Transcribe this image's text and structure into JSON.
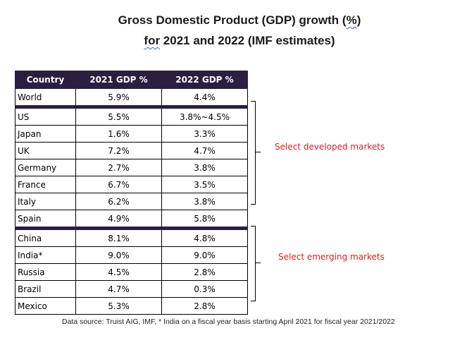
{
  "title": {
    "line1_a": "Gross Domestic Product (GDP) growth (",
    "line1_b": "%",
    "line1_c": ")",
    "line2_a": "for",
    "line2_b": " 2021 and 2022 (IMF estimates)"
  },
  "chart_data": {
    "type": "table",
    "columns": [
      "Country",
      "2021 GDP %",
      "2022 GDP %"
    ],
    "rows": [
      {
        "country": "World",
        "gdp_2021": "5.9%",
        "gdp_2022": "4.4%"
      },
      {
        "country": "US",
        "gdp_2021": "5.5%",
        "gdp_2022": "3.8%~4.5%"
      },
      {
        "country": "Japan",
        "gdp_2021": "1.6%",
        "gdp_2022": "3.3%"
      },
      {
        "country": "UK",
        "gdp_2021": "7.2%",
        "gdp_2022": "4.7%"
      },
      {
        "country": "Germany",
        "gdp_2021": "2.7%",
        "gdp_2022": "3.8%"
      },
      {
        "country": "France",
        "gdp_2021": "6.7%",
        "gdp_2022": "3.5%"
      },
      {
        "country": "Italy",
        "gdp_2021": "6.2%",
        "gdp_2022": "3.8%"
      },
      {
        "country": "Spain",
        "gdp_2021": "4.9%",
        "gdp_2022": "5.8%"
      },
      {
        "country": "China",
        "gdp_2021": "8.1%",
        "gdp_2022": "4.8%"
      },
      {
        "country": "India*",
        "gdp_2021": "9.0%",
        "gdp_2022": "9.0%"
      },
      {
        "country": "Russia",
        "gdp_2021": "4.5%",
        "gdp_2022": "2.8%"
      },
      {
        "country": "Brazil",
        "gdp_2021": "4.7%",
        "gdp_2022": "0.3%"
      },
      {
        "country": "Mexico",
        "gdp_2021": "5.3%",
        "gdp_2022": "2.8%"
      }
    ],
    "groups": [
      {
        "label": "Select developed markets",
        "countries": [
          "US",
          "Japan",
          "UK",
          "Germany",
          "France",
          "Italy"
        ]
      },
      {
        "label": "Select emerging markets",
        "countries": [
          "China",
          "India*",
          "Russia",
          "Brazil"
        ]
      }
    ],
    "annotation_color": "#e31b1b",
    "header_color": "#2a1f3f"
  },
  "source": "Data source: Truist AIG, IMF, * India on a fiscal year basis starting April 2021 for fiscal year 2021/2022"
}
